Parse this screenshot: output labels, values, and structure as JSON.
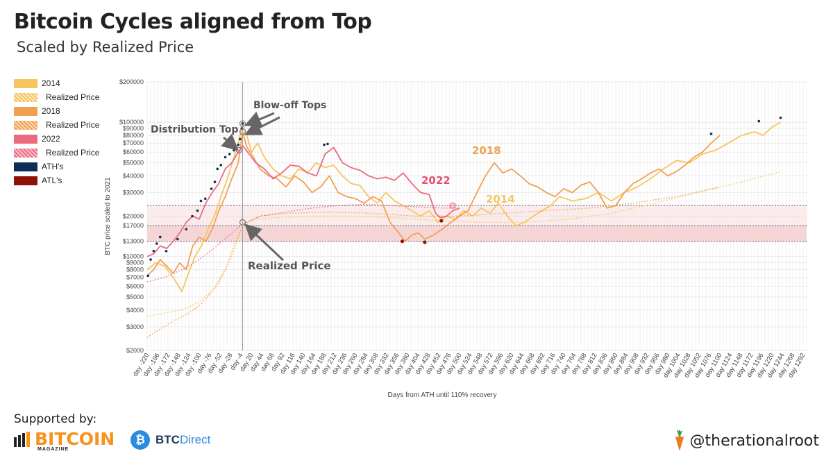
{
  "title": "Bitcoin Cycles aligned from Top",
  "subtitle": "Scaled by Realized Price",
  "legend": [
    {
      "label": "2014",
      "color": "#f6c560",
      "style": "solid"
    },
    {
      "label": "Realized Price",
      "color": "#f6c560",
      "style": "dotted"
    },
    {
      "label": "2018",
      "color": "#f0a050",
      "style": "solid"
    },
    {
      "label": "Realized Price",
      "color": "#f0a050",
      "style": "dotted"
    },
    {
      "label": "2022",
      "color": "#ec6a80",
      "style": "solid"
    },
    {
      "label": "Realized Price",
      "color": "#ec6a80",
      "style": "dotted"
    },
    {
      "label": "ATH's",
      "color": "#0f2e55",
      "style": "solid"
    },
    {
      "label": "ATL's",
      "color": "#8e1208",
      "style": "solid"
    }
  ],
  "chart_data": {
    "type": "line",
    "title": "Bitcoin Cycles aligned from Top",
    "xlabel": "Days from ATH until 110% recovery",
    "ylabel": "BTC price scaled to 2021",
    "yscale": "log",
    "ylim": [
      2000,
      200000
    ],
    "xlim": [
      -220,
      1300
    ],
    "y_ticks": [
      2000,
      3000,
      4000,
      5000,
      6000,
      7000,
      8000,
      9000,
      10000,
      13000,
      17000,
      20000,
      30000,
      40000,
      50000,
      60000,
      70000,
      80000,
      90000,
      100000,
      200000
    ],
    "y_tick_labels": [
      "$2000",
      "$3000",
      "$4000",
      "$5000",
      "$6000",
      "$7000",
      "$8000",
      "$9000",
      "$10000",
      "$13000",
      "$17000",
      "$20000",
      "$30000",
      "$40000",
      "$50000",
      "$60000",
      "$70000",
      "$80000",
      "$90000",
      "$100000",
      "$200000"
    ],
    "x_tick_labels": [
      "day -220",
      "day -196",
      "day -172",
      "day -148",
      "day -124",
      "day -100",
      "day -76",
      "day -52",
      "day -28",
      "day -4",
      "day 20",
      "day 44",
      "day 68",
      "day 92",
      "day 116",
      "day 140",
      "day 164",
      "day 188",
      "day 212",
      "day 236",
      "day 260",
      "day 284",
      "day 308",
      "day 332",
      "day 356",
      "day 380",
      "day 404",
      "day 428",
      "day 452",
      "day 476",
      "day 500",
      "day 524",
      "day 548",
      "day 572",
      "day 596",
      "day 620",
      "day 644",
      "day 668",
      "day 692",
      "day 716",
      "day 740",
      "day 764",
      "day 788",
      "day 812",
      "day 836",
      "day 860",
      "day 884",
      "day 908",
      "day 932",
      "day 956",
      "day 980",
      "day 1004",
      "day 1028",
      "day 1052",
      "day 1076",
      "day 1100",
      "day 1124",
      "day 1148",
      "day 1172",
      "day 1196",
      "day 1220",
      "day 1244",
      "day 1268",
      "day 1292"
    ],
    "bands": [
      {
        "from": 13000,
        "to": 17000,
        "color": "#f7d3d3"
      },
      {
        "from": 17000,
        "to": 24000,
        "color": "#fdecec"
      }
    ],
    "hlines": [
      13000,
      17000,
      24000
    ],
    "series": [
      {
        "name": "2014",
        "color": "#f6c560",
        "style": "solid",
        "x": [
          -220,
          -200,
          -180,
          -160,
          -140,
          -125,
          -110,
          -95,
          -80,
          -65,
          -50,
          -35,
          -20,
          -10,
          0,
          10,
          20,
          35,
          50,
          70,
          90,
          110,
          130,
          150,
          170,
          190,
          210,
          230,
          250,
          270,
          290,
          310,
          330,
          350,
          370,
          390,
          410,
          430,
          450,
          470,
          490,
          510,
          530,
          550,
          570,
          590,
          610,
          630,
          650,
          670,
          690,
          710,
          730,
          760,
          790,
          820,
          850,
          880,
          910,
          940,
          970,
          1000,
          1030,
          1060,
          1090,
          1120,
          1150,
          1180,
          1200,
          1220,
          1240
        ],
        "y": [
          8000,
          9000,
          8500,
          7000,
          5500,
          7500,
          10000,
          12000,
          16000,
          20000,
          28000,
          38000,
          55000,
          70000,
          98000,
          80000,
          60000,
          70000,
          55000,
          45000,
          40000,
          38000,
          45000,
          42000,
          50000,
          46000,
          48000,
          40000,
          35000,
          34000,
          28000,
          25000,
          30000,
          26000,
          24000,
          22000,
          20000,
          22000,
          18000,
          20000,
          19000,
          22000,
          20000,
          23000,
          21000,
          25000,
          20000,
          17000,
          18000,
          20000,
          22000,
          24000,
          28000,
          26000,
          27000,
          30000,
          26000,
          30000,
          33000,
          38000,
          45000,
          52000,
          50000,
          58000,
          62000,
          70000,
          80000,
          85000,
          80000,
          92000,
          100000
        ]
      },
      {
        "name": "2014 Realized Price",
        "color": "#f6c560",
        "style": "dotted",
        "x": [
          -220,
          -180,
          -140,
          -100,
          -60,
          -30,
          -10,
          0,
          30,
          80,
          150,
          250,
          350,
          450,
          550,
          650,
          750,
          850,
          950,
          1050,
          1150,
          1240
        ],
        "y": [
          3600,
          3800,
          4000,
          4600,
          6000,
          9000,
          14000,
          17500,
          19000,
          19500,
          20000,
          20000,
          19500,
          18500,
          18000,
          18000,
          19000,
          21000,
          25000,
          30000,
          36000,
          43000
        ]
      },
      {
        "name": "2018",
        "color": "#f0a050",
        "style": "solid",
        "x": [
          -220,
          -205,
          -190,
          -175,
          -160,
          -145,
          -130,
          -115,
          -100,
          -85,
          -70,
          -55,
          -40,
          -25,
          -10,
          0,
          10,
          25,
          40,
          60,
          80,
          100,
          120,
          140,
          160,
          180,
          200,
          220,
          240,
          260,
          280,
          300,
          320,
          340,
          360,
          375,
          390,
          405,
          420,
          440,
          460,
          480,
          500,
          520,
          540,
          560,
          580,
          600,
          620,
          640,
          660,
          680,
          700,
          720,
          740,
          760,
          780,
          800,
          820,
          840,
          860,
          880,
          900,
          920,
          940,
          960,
          980,
          1000,
          1020,
          1040,
          1060,
          1080,
          1100
        ],
        "y": [
          7200,
          8000,
          9500,
          8500,
          7500,
          9000,
          8000,
          12000,
          14000,
          13000,
          16000,
          22000,
          28000,
          38000,
          50000,
          85000,
          65000,
          55000,
          45000,
          40000,
          38000,
          33000,
          40000,
          36000,
          30000,
          33000,
          40000,
          30000,
          28000,
          27000,
          25000,
          28000,
          26000,
          18000,
          15000,
          13000,
          14500,
          15000,
          13500,
          14500,
          16000,
          18000,
          20000,
          22000,
          30000,
          40000,
          50000,
          42000,
          45000,
          40000,
          35000,
          33000,
          30000,
          28000,
          32000,
          30000,
          34000,
          36000,
          30000,
          23000,
          24000,
          30000,
          35000,
          38000,
          42000,
          45000,
          40000,
          43000,
          48000,
          55000,
          60000,
          70000,
          80000
        ]
      },
      {
        "name": "2018 Realized Price",
        "color": "#f0a050",
        "style": "dotted",
        "x": [
          -220,
          -190,
          -160,
          -130,
          -100,
          -70,
          -40,
          -20,
          0,
          40,
          100,
          200,
          300,
          400,
          500,
          600,
          700,
          800,
          900,
          1000,
          1100
        ],
        "y": [
          2500,
          2900,
          3300,
          3700,
          4300,
          5500,
          8000,
          12000,
          17000,
          20000,
          21000,
          21500,
          21000,
          20000,
          20000,
          21000,
          22000,
          23000,
          25000,
          28000,
          33000
        ]
      },
      {
        "name": "2022",
        "color": "#ec6a80",
        "style": "solid",
        "x": [
          -220,
          -205,
          -190,
          -175,
          -160,
          -145,
          -130,
          -115,
          -100,
          -85,
          -70,
          -55,
          -40,
          -25,
          -10,
          0,
          15,
          30,
          50,
          70,
          90,
          110,
          130,
          150,
          170,
          190,
          210,
          230,
          250,
          270,
          290,
          310,
          330,
          350,
          370,
          390,
          410,
          430,
          445,
          455,
          470,
          485,
          500
        ],
        "y": [
          10000,
          10500,
          12000,
          11500,
          13000,
          15000,
          18000,
          20000,
          19000,
          25000,
          30000,
          35000,
          45000,
          50000,
          60000,
          67000,
          58000,
          50000,
          45000,
          38000,
          42000,
          48000,
          47000,
          42000,
          40000,
          58000,
          65000,
          50000,
          46000,
          44000,
          40000,
          38000,
          39000,
          37000,
          42000,
          35000,
          30000,
          29000,
          21000,
          19500,
          20000,
          22000,
          23000
        ]
      },
      {
        "name": "2022 Realized Price",
        "color": "#ec6a80",
        "style": "dotted",
        "x": [
          -220,
          -180,
          -140,
          -100,
          -60,
          -30,
          0,
          40,
          100,
          160,
          220,
          280,
          340,
          400,
          460,
          500
        ],
        "y": [
          6500,
          7000,
          8000,
          9500,
          12000,
          14500,
          17500,
          20000,
          21500,
          23000,
          24000,
          24500,
          24000,
          23500,
          23000,
          23000
        ]
      }
    ],
    "ath_points": [
      [
        -218,
        7200
      ],
      [
        -212,
        9500
      ],
      [
        -205,
        11000
      ],
      [
        -198,
        12500
      ],
      [
        -190,
        14000
      ],
      [
        -176,
        11000
      ],
      [
        -150,
        13500
      ],
      [
        -130,
        16000
      ],
      [
        -116,
        20000
      ],
      [
        -104,
        22000
      ],
      [
        -96,
        26000
      ],
      [
        -86,
        27000
      ],
      [
        -72,
        32000
      ],
      [
        -64,
        36000
      ],
      [
        -58,
        45000
      ],
      [
        -50,
        48000
      ],
      [
        -40,
        55000
      ],
      [
        -30,
        58000
      ],
      [
        -20,
        62000
      ],
      [
        -10,
        68000
      ],
      [
        -6,
        75000
      ],
      [
        -2,
        90000
      ],
      [
        0,
        98000
      ],
      [
        188,
        68000
      ],
      [
        196,
        69000
      ],
      [
        1080,
        82000
      ],
      [
        1190,
        102000
      ],
      [
        1240,
        108000
      ]
    ],
    "atl_points": [
      [
        368,
        13000
      ],
      [
        420,
        12800
      ],
      [
        458,
        18500
      ]
    ],
    "markers": [
      {
        "x": 0,
        "y": 98000,
        "kind": "top-circle"
      },
      {
        "x": 0,
        "y": 85000,
        "kind": "top-circle"
      },
      {
        "x": -8,
        "y": 62000,
        "kind": "top-circle"
      },
      {
        "x": 0,
        "y": 18000,
        "kind": "rp-circle"
      },
      {
        "x": 484,
        "y": 24000,
        "kind": "pink-circle"
      }
    ],
    "annotations": [
      {
        "text": "Blow-off Tops"
      },
      {
        "text": "Distribution Top"
      },
      {
        "text": "Realized Price"
      },
      {
        "text": "2018",
        "color": "#f0a050"
      },
      {
        "text": "2022",
        "color": "#e05070"
      },
      {
        "text": "2014",
        "color": "#f6c560"
      }
    ]
  },
  "footer": {
    "supported_by": "Supported by:",
    "bitcoin_logo_text": "BITCOIN",
    "bitcoin_logo_sub": "MAGAZINE",
    "btcdirect_part1": "BTC",
    "btcdirect_part2": "Direct",
    "handle": "@therationalroot"
  }
}
